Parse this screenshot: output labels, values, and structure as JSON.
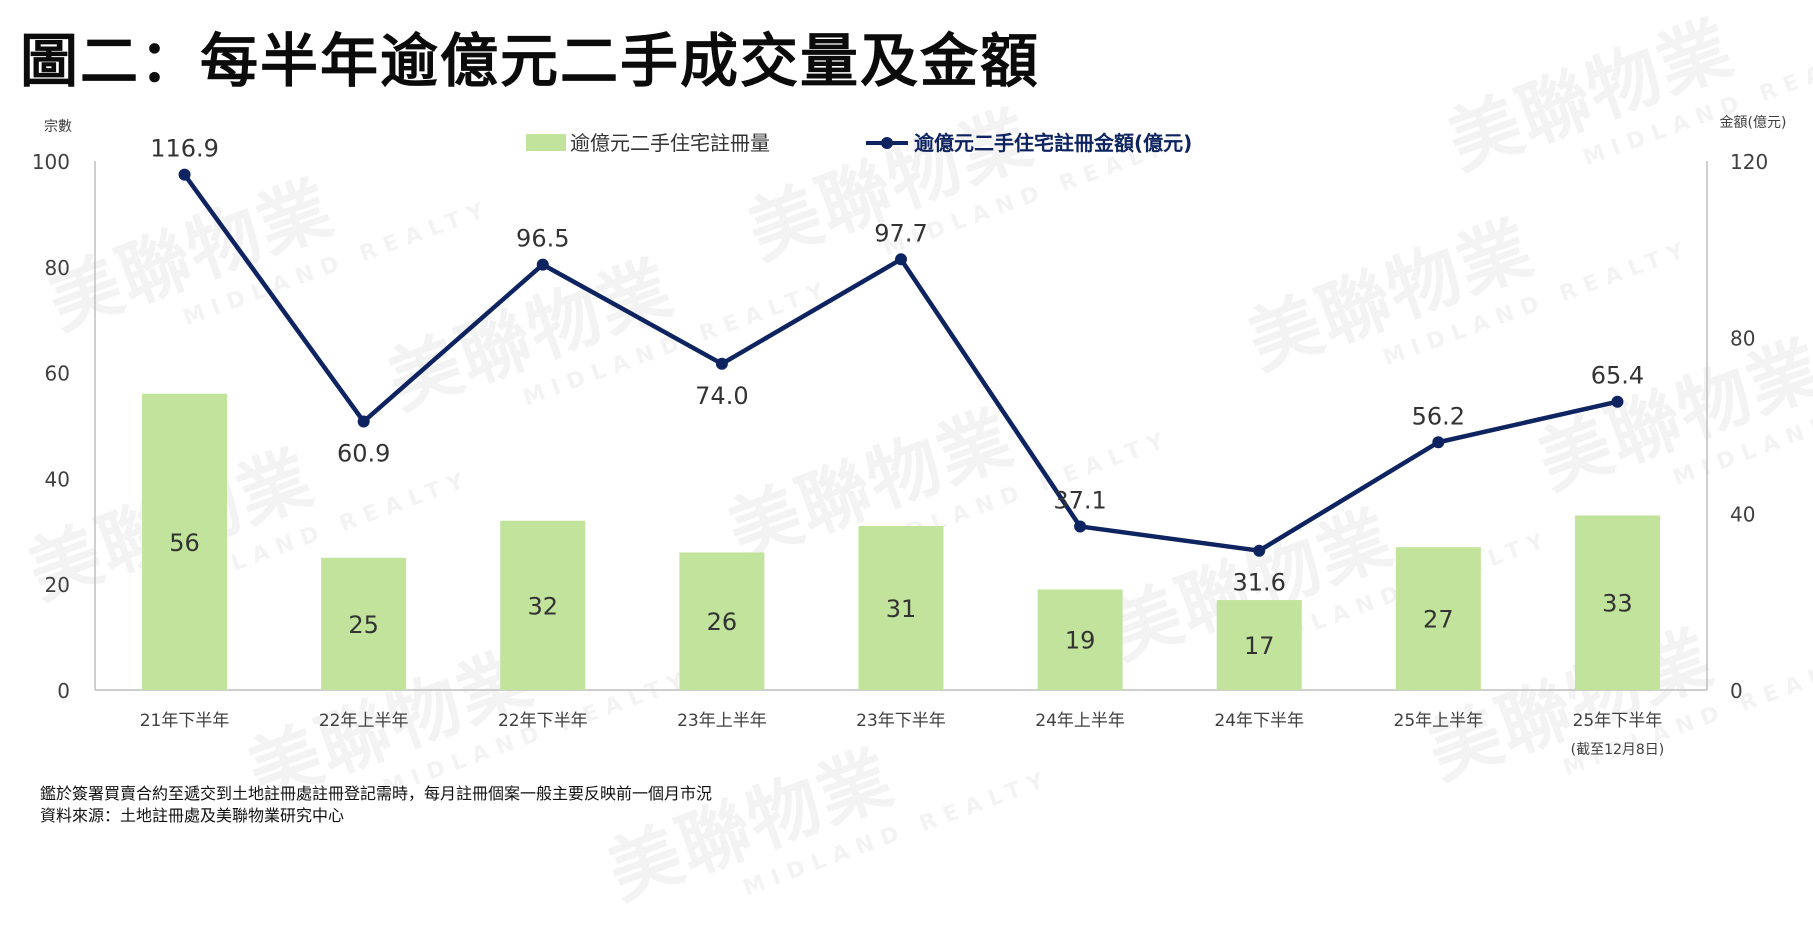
{
  "title": "圖二：每半年逾億元二手成交量及金額",
  "watermark": {
    "main": "美聯物業",
    "sub": "MIDLAND REALTY"
  },
  "colors": {
    "bar": "#c1e39c",
    "line": "#0e2461",
    "axis": "#bfbfbf",
    "text": "#404040"
  },
  "chart_data": {
    "type": "bar+line",
    "categories": [
      "21年下半年",
      "22年上半年",
      "22年下半年",
      "23年上半年",
      "23年下半年",
      "24年上半年",
      "24年下半年",
      "25年上半年",
      "25年下半年"
    ],
    "category_note": {
      "index": 8,
      "text": "(截至12月8日)"
    },
    "series": [
      {
        "name": "逾億元二手住宅註冊量",
        "type": "bar",
        "axis": "left",
        "values": [
          56,
          25,
          32,
          26,
          31,
          19,
          17,
          27,
          33
        ]
      },
      {
        "name": "逾億元二手住宅註冊金額(億元)",
        "type": "line",
        "axis": "right",
        "values": [
          116.9,
          60.9,
          96.5,
          74.0,
          97.7,
          37.1,
          31.6,
          56.2,
          65.4
        ]
      }
    ],
    "y_left": {
      "label": "宗數",
      "ylim": [
        0,
        100
      ],
      "ticks": [
        0,
        20,
        40,
        60,
        80,
        100
      ]
    },
    "y_right": {
      "label": "金額(億元)",
      "ylim": [
        0,
        120
      ],
      "ticks": [
        0,
        40,
        80,
        120
      ]
    },
    "legend": "top-center",
    "grid": false
  },
  "footnotes": [
    "鑑於簽署買賣合約至遞交到土地註冊處註冊登記需時，每月註冊個案一般主要反映前一個月市況",
    "資料來源：土地註冊處及美聯物業研究中心"
  ]
}
